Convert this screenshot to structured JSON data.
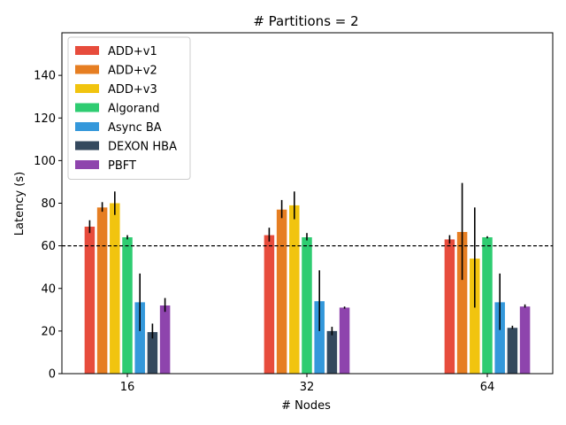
{
  "chart_data": {
    "type": "bar",
    "title": "# Partitions = 2",
    "xlabel": "# Nodes",
    "ylabel": "Latency (s)",
    "categories": [
      "16",
      "32",
      "64"
    ],
    "ylim": [
      0,
      160
    ],
    "yticks": [
      0,
      20,
      40,
      60,
      80,
      100,
      120,
      140
    ],
    "reference_line": {
      "y": 60,
      "style": "dashed",
      "color": "#000000"
    },
    "legend_position": "top-left",
    "grid": false,
    "series": [
      {
        "name": "ADD+v1",
        "color": "#e74c3c",
        "values": [
          69,
          65,
          63
        ],
        "error_low": [
          66,
          62,
          61
        ],
        "error_high": [
          72,
          68.5,
          65
        ]
      },
      {
        "name": "ADD+v2",
        "color": "#e67e22",
        "values": [
          78,
          77,
          66.5
        ],
        "error_low": [
          76,
          73,
          44
        ],
        "error_high": [
          80.5,
          81.5,
          89.5
        ]
      },
      {
        "name": "ADD+v3",
        "color": "#f1c40f",
        "values": [
          80,
          79,
          54
        ],
        "error_low": [
          74.5,
          72.5,
          31
        ],
        "error_high": [
          85.5,
          85.5,
          78
        ]
      },
      {
        "name": "Algorand",
        "color": "#2ecc71",
        "values": [
          64,
          64,
          64
        ],
        "error_low": [
          63,
          62.5,
          63.5
        ],
        "error_high": [
          65,
          66,
          64.5
        ]
      },
      {
        "name": "Async BA",
        "color": "#3498db",
        "values": [
          33.5,
          34,
          33.5
        ],
        "error_low": [
          20,
          20,
          20.5
        ],
        "error_high": [
          47,
          48.5,
          47
        ]
      },
      {
        "name": "DEXON HBA",
        "color": "#34495e",
        "values": [
          19.5,
          20,
          21.5
        ],
        "error_low": [
          16.5,
          18,
          21
        ],
        "error_high": [
          23.5,
          22,
          22.5
        ]
      },
      {
        "name": "PBFT",
        "color": "#8e44ad",
        "values": [
          32,
          31,
          31.5
        ],
        "error_low": [
          29,
          30.5,
          31
        ],
        "error_high": [
          35.5,
          31.5,
          32.5
        ]
      }
    ]
  }
}
